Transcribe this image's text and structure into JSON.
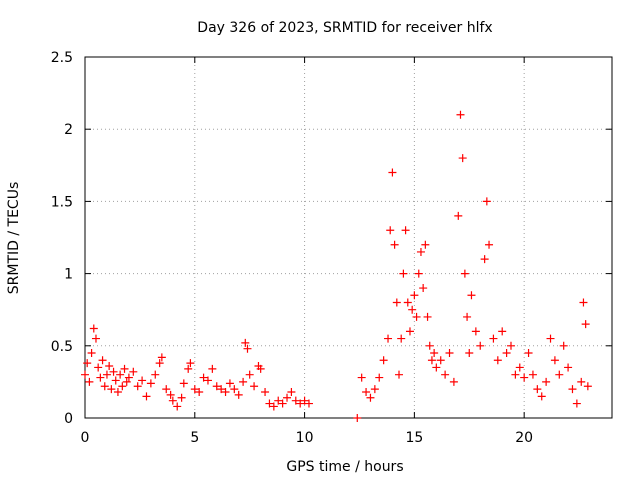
{
  "chart_data": {
    "type": "scatter",
    "title": "Day 326 of 2023, SRMTID for receiver hlfx",
    "xlabel": "GPS time / hours",
    "ylabel": "SRMTID / TECUs",
    "xlim": [
      0,
      24
    ],
    "ylim": [
      0,
      2.5
    ],
    "xticks": [
      0,
      5,
      10,
      15,
      20
    ],
    "yticks": [
      0,
      0.5,
      1,
      1.5,
      2,
      2.5
    ],
    "ytick_labels": [
      "0",
      "0.5",
      "1",
      "1.5",
      "2",
      "2.5"
    ],
    "grid": true,
    "marker": "+",
    "color": "#ff0000",
    "series": [
      {
        "name": "SRMTID",
        "points": [
          [
            0.0,
            0.3
          ],
          [
            0.1,
            0.38
          ],
          [
            0.2,
            0.25
          ],
          [
            0.3,
            0.45
          ],
          [
            0.4,
            0.62
          ],
          [
            0.5,
            0.55
          ],
          [
            0.6,
            0.35
          ],
          [
            0.7,
            0.28
          ],
          [
            0.8,
            0.4
          ],
          [
            0.9,
            0.22
          ],
          [
            1.0,
            0.3
          ],
          [
            1.1,
            0.36
          ],
          [
            1.2,
            0.2
          ],
          [
            1.3,
            0.32
          ],
          [
            1.4,
            0.26
          ],
          [
            1.5,
            0.18
          ],
          [
            1.6,
            0.3
          ],
          [
            1.7,
            0.22
          ],
          [
            1.8,
            0.34
          ],
          [
            1.9,
            0.25
          ],
          [
            2.0,
            0.28
          ],
          [
            2.2,
            0.32
          ],
          [
            2.4,
            0.22
          ],
          [
            2.6,
            0.26
          ],
          [
            2.8,
            0.15
          ],
          [
            3.0,
            0.24
          ],
          [
            3.2,
            0.3
          ],
          [
            3.4,
            0.38
          ],
          [
            3.5,
            0.42
          ],
          [
            3.7,
            0.2
          ],
          [
            3.9,
            0.16
          ],
          [
            4.0,
            0.12
          ],
          [
            4.2,
            0.08
          ],
          [
            4.4,
            0.14
          ],
          [
            4.5,
            0.24
          ],
          [
            4.7,
            0.34
          ],
          [
            4.8,
            0.38
          ],
          [
            5.0,
            0.2
          ],
          [
            5.2,
            0.18
          ],
          [
            5.4,
            0.28
          ],
          [
            5.6,
            0.26
          ],
          [
            5.8,
            0.34
          ],
          [
            6.0,
            0.22
          ],
          [
            6.2,
            0.2
          ],
          [
            6.4,
            0.18
          ],
          [
            6.6,
            0.24
          ],
          [
            6.8,
            0.2
          ],
          [
            7.0,
            0.16
          ],
          [
            7.2,
            0.25
          ],
          [
            7.3,
            0.52
          ],
          [
            7.4,
            0.48
          ],
          [
            7.5,
            0.3
          ],
          [
            7.7,
            0.22
          ],
          [
            7.9,
            0.36
          ],
          [
            8.0,
            0.34
          ],
          [
            8.2,
            0.18
          ],
          [
            8.4,
            0.1
          ],
          [
            8.6,
            0.08
          ],
          [
            8.8,
            0.12
          ],
          [
            9.0,
            0.1
          ],
          [
            9.2,
            0.14
          ],
          [
            9.4,
            0.18
          ],
          [
            9.6,
            0.12
          ],
          [
            9.8,
            0.1
          ],
          [
            10.0,
            0.12
          ],
          [
            10.2,
            0.1
          ],
          [
            12.4,
            0.0
          ],
          [
            12.6,
            0.28
          ],
          [
            12.8,
            0.18
          ],
          [
            13.0,
            0.14
          ],
          [
            13.2,
            0.2
          ],
          [
            13.4,
            0.28
          ],
          [
            13.6,
            0.4
          ],
          [
            13.8,
            0.55
          ],
          [
            13.9,
            1.3
          ],
          [
            14.0,
            1.7
          ],
          [
            14.1,
            1.2
          ],
          [
            14.2,
            0.8
          ],
          [
            14.3,
            0.3
          ],
          [
            14.4,
            0.55
          ],
          [
            14.5,
            1.0
          ],
          [
            14.6,
            1.3
          ],
          [
            14.7,
            0.8
          ],
          [
            14.8,
            0.6
          ],
          [
            14.9,
            0.75
          ],
          [
            15.0,
            0.85
          ],
          [
            15.1,
            0.7
          ],
          [
            15.2,
            1.0
          ],
          [
            15.3,
            1.15
          ],
          [
            15.4,
            0.9
          ],
          [
            15.5,
            1.2
          ],
          [
            15.6,
            0.7
          ],
          [
            15.7,
            0.5
          ],
          [
            15.8,
            0.4
          ],
          [
            15.9,
            0.45
          ],
          [
            16.0,
            0.35
          ],
          [
            16.2,
            0.4
          ],
          [
            16.4,
            0.3
          ],
          [
            16.6,
            0.45
          ],
          [
            16.8,
            0.25
          ],
          [
            17.0,
            1.4
          ],
          [
            17.1,
            2.1
          ],
          [
            17.2,
            1.8
          ],
          [
            17.3,
            1.0
          ],
          [
            17.4,
            0.7
          ],
          [
            17.5,
            0.45
          ],
          [
            17.6,
            0.85
          ],
          [
            17.8,
            0.6
          ],
          [
            18.0,
            0.5
          ],
          [
            18.2,
            1.1
          ],
          [
            18.3,
            1.5
          ],
          [
            18.4,
            1.2
          ],
          [
            18.6,
            0.55
          ],
          [
            18.8,
            0.4
          ],
          [
            19.0,
            0.6
          ],
          [
            19.2,
            0.45
          ],
          [
            19.4,
            0.5
          ],
          [
            19.6,
            0.3
          ],
          [
            19.8,
            0.35
          ],
          [
            20.0,
            0.28
          ],
          [
            20.2,
            0.45
          ],
          [
            20.4,
            0.3
          ],
          [
            20.6,
            0.2
          ],
          [
            20.8,
            0.15
          ],
          [
            21.0,
            0.25
          ],
          [
            21.2,
            0.55
          ],
          [
            21.4,
            0.4
          ],
          [
            21.6,
            0.3
          ],
          [
            21.8,
            0.5
          ],
          [
            22.0,
            0.35
          ],
          [
            22.2,
            0.2
          ],
          [
            22.4,
            0.1
          ],
          [
            22.6,
            0.25
          ],
          [
            22.7,
            0.8
          ],
          [
            22.8,
            0.65
          ],
          [
            22.9,
            0.22
          ]
        ]
      }
    ]
  }
}
